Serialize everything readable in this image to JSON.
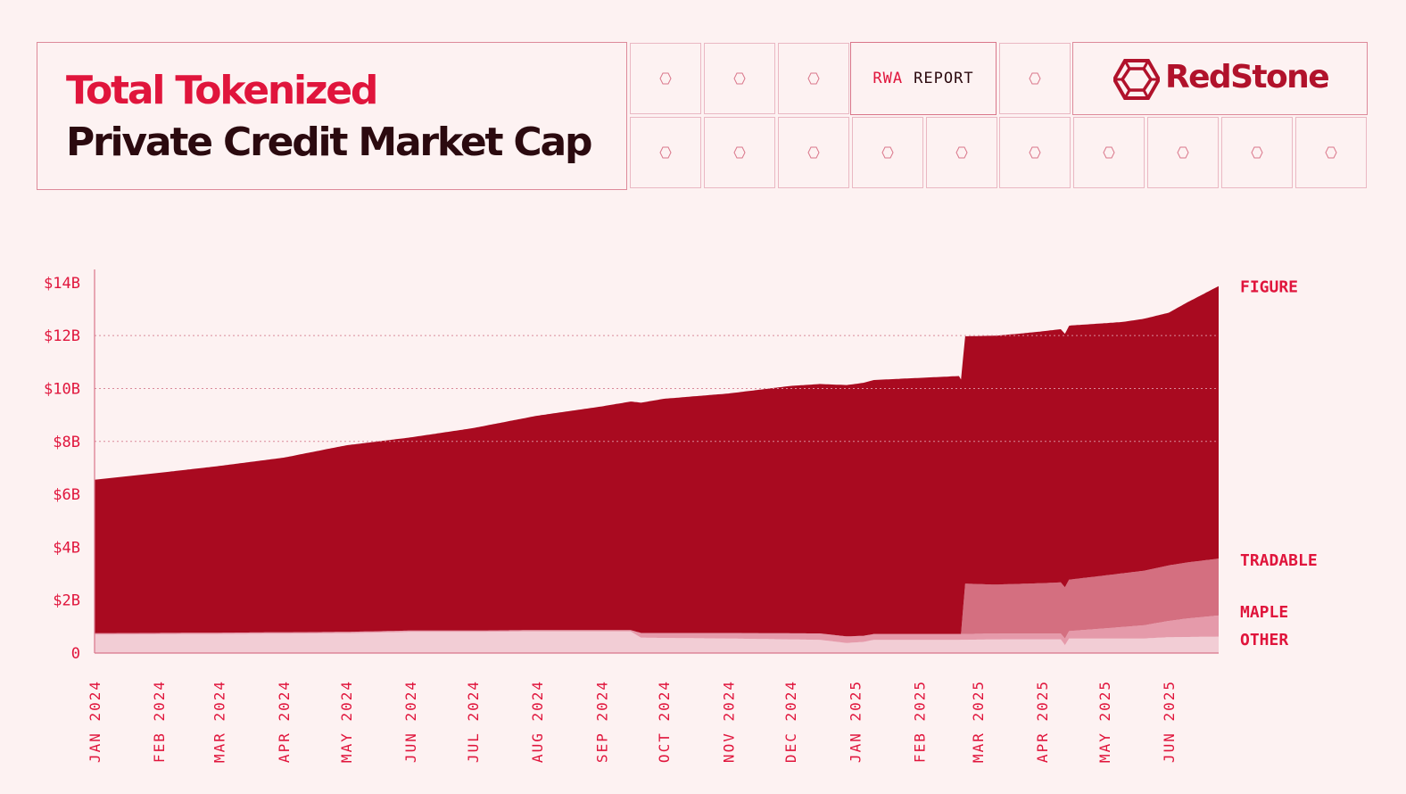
{
  "header": {
    "title_line1": "Total Tokenized",
    "title_line2": "Private Credit Market Cap",
    "report_tag_prefix": "RWA",
    "report_tag_suffix": "REPORT",
    "brand": "RedStone",
    "colors": {
      "accent": "#e0153c",
      "dark": "#2b0a0f",
      "brand": "#b1122b",
      "background": "#fdf2f2"
    },
    "decor_icon": "hexagon-icon",
    "logo_icon": "redstone-gem-icon"
  },
  "chart_data": {
    "type": "area",
    "stacked": true,
    "x_start": "2024-01-01",
    "x_end": "2025-06-25",
    "categories": [
      "JAN 2024",
      "FEB 2024",
      "MAR 2024",
      "APR 2024",
      "MAY 2024",
      "JUN 2024",
      "JUL 2024",
      "AUG 2024",
      "SEP 2024",
      "OCT 2024",
      "NOV 2024",
      "DEC 2024",
      "JAN 2025",
      "FEB 2025",
      "MAR 2025",
      "APR 2025",
      "MAY 2025",
      "JUN 2025"
    ],
    "ylim": [
      0,
      14.5
    ],
    "yticks": [
      {
        "value": 0,
        "label": "0"
      },
      {
        "value": 2,
        "label": "$2B"
      },
      {
        "value": 4,
        "label": "$4B"
      },
      {
        "value": 6,
        "label": "$6B"
      },
      {
        "value": 8,
        "label": "$8B"
      },
      {
        "value": 10,
        "label": "$10B"
      },
      {
        "value": 12,
        "label": "$12B"
      },
      {
        "value": 14,
        "label": "$14B"
      }
    ],
    "grid": "dotted horizontal at $8B, $10B, $12B",
    "series": [
      {
        "name": "OTHER",
        "color": "#f2cdd5",
        "points": [
          [
            "2024-01-01",
            0.7
          ],
          [
            "2024-03-01",
            0.72
          ],
          [
            "2024-05-01",
            0.75
          ],
          [
            "2024-06-01",
            0.8
          ],
          [
            "2024-07-01",
            0.8
          ],
          [
            "2024-08-01",
            0.82
          ],
          [
            "2024-09-15",
            0.82
          ],
          [
            "2024-09-20",
            0.58
          ],
          [
            "2024-11-01",
            0.55
          ],
          [
            "2024-12-15",
            0.5
          ],
          [
            "2024-12-28",
            0.38
          ],
          [
            "2025-01-05",
            0.42
          ],
          [
            "2025-01-10",
            0.5
          ],
          [
            "2025-02-20",
            0.5
          ],
          [
            "2025-03-15",
            0.52
          ],
          [
            "2025-04-10",
            0.52
          ],
          [
            "2025-04-12",
            0.3
          ],
          [
            "2025-04-14",
            0.55
          ],
          [
            "2025-05-20",
            0.55
          ],
          [
            "2025-06-01",
            0.6
          ],
          [
            "2025-06-25",
            0.62
          ]
        ]
      },
      {
        "name": "MAPLE",
        "color": "#e59aaa",
        "points": [
          [
            "2024-01-01",
            0.05
          ],
          [
            "2024-09-15",
            0.05
          ],
          [
            "2024-09-20",
            0.18
          ],
          [
            "2024-12-28",
            0.25
          ],
          [
            "2025-01-10",
            0.22
          ],
          [
            "2025-02-20",
            0.22
          ],
          [
            "2025-04-10",
            0.22
          ],
          [
            "2025-04-14",
            0.28
          ],
          [
            "2025-05-01",
            0.38
          ],
          [
            "2025-05-20",
            0.5
          ],
          [
            "2025-06-10",
            0.7
          ],
          [
            "2025-06-25",
            0.8
          ]
        ]
      },
      {
        "name": "TRADABLE",
        "color": "#d46f80",
        "points": [
          [
            "2024-01-01",
            0
          ],
          [
            "2025-02-21",
            0
          ],
          [
            "2025-02-23",
            1.9
          ],
          [
            "2025-03-10",
            1.85
          ],
          [
            "2025-04-01",
            1.9
          ],
          [
            "2025-05-01",
            2.0
          ],
          [
            "2025-06-01",
            2.1
          ],
          [
            "2025-06-25",
            2.15
          ]
        ]
      },
      {
        "name": "FIGURE",
        "color": "#a90a20",
        "points": [
          [
            "2024-01-01",
            5.8
          ],
          [
            "2024-02-01",
            6.05
          ],
          [
            "2024-03-01",
            6.3
          ],
          [
            "2024-04-01",
            6.6
          ],
          [
            "2024-05-01",
            7.05
          ],
          [
            "2024-06-01",
            7.3
          ],
          [
            "2024-07-01",
            7.65
          ],
          [
            "2024-08-01",
            8.1
          ],
          [
            "2024-09-01",
            8.45
          ],
          [
            "2024-10-01",
            8.85
          ],
          [
            "2024-11-01",
            9.05
          ],
          [
            "2024-12-01",
            9.35
          ],
          [
            "2024-12-28",
            9.5
          ],
          [
            "2025-01-10",
            9.6
          ],
          [
            "2025-02-20",
            9.75
          ],
          [
            "2025-02-23",
            9.35
          ],
          [
            "2025-03-20",
            9.45
          ],
          [
            "2025-04-15",
            9.6
          ],
          [
            "2025-05-10",
            9.5
          ],
          [
            "2025-06-01",
            9.55
          ],
          [
            "2025-06-25",
            10.3
          ]
        ]
      }
    ],
    "legend": "right edge, labels aligned to each series",
    "legend_labels": [
      {
        "name": "FIGURE",
        "value": 13.85
      },
      {
        "name": "TRADABLE",
        "value": 3.5
      },
      {
        "name": "MAPLE",
        "value": 1.55
      },
      {
        "name": "OTHER",
        "value": 0.5
      }
    ]
  }
}
